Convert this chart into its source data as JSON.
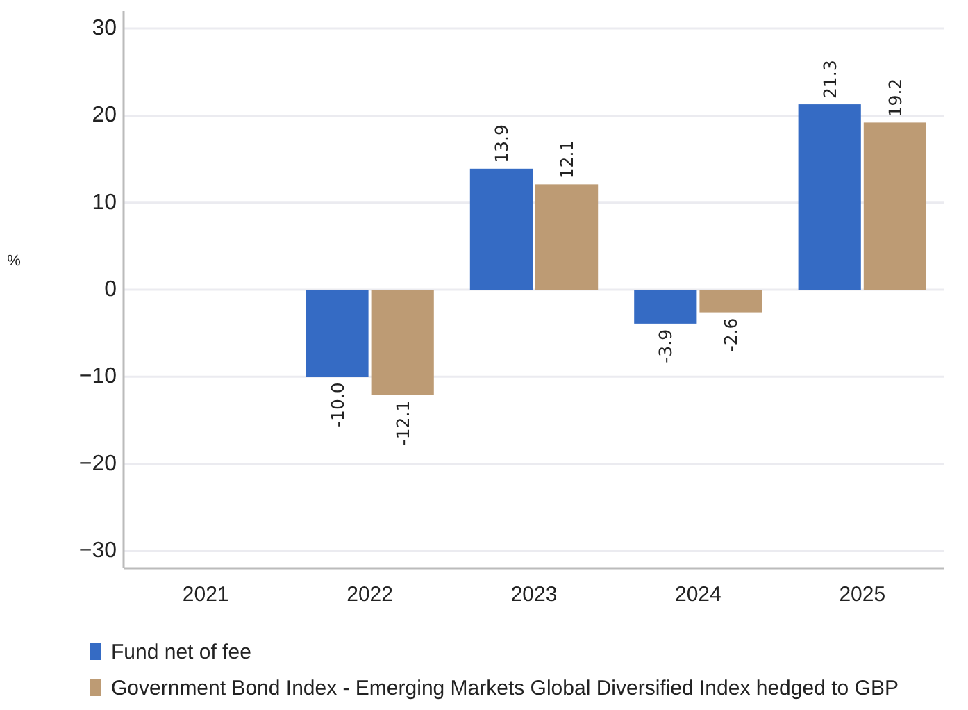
{
  "chart_data": {
    "type": "bar",
    "ylabel": "%",
    "categories": [
      "2021",
      "2022",
      "2023",
      "2024",
      "2025"
    ],
    "series": [
      {
        "name": "Fund net of fee",
        "color": "#356bc4",
        "values": [
          null,
          -10.0,
          13.9,
          -3.9,
          21.3
        ],
        "value_labels": [
          null,
          "-10.0",
          "13.9",
          "-3.9",
          "21.3"
        ]
      },
      {
        "name": "Government Bond Index - Emerging Markets Global Diversified Index hedged to GBP",
        "color": "#bd9b74",
        "values": [
          null,
          -12.1,
          12.1,
          -2.6,
          19.2
        ],
        "value_labels": [
          null,
          "-12.1",
          "12.1",
          "-2.6",
          "19.2"
        ]
      }
    ],
    "ylim": [
      -32,
      32
    ],
    "yticks": [
      {
        "value": -30,
        "label": "−30"
      },
      {
        "value": -20,
        "label": "−20"
      },
      {
        "value": -10,
        "label": "−10"
      },
      0,
      10,
      20,
      30
    ],
    "grid": "y",
    "legend": "bottom"
  }
}
